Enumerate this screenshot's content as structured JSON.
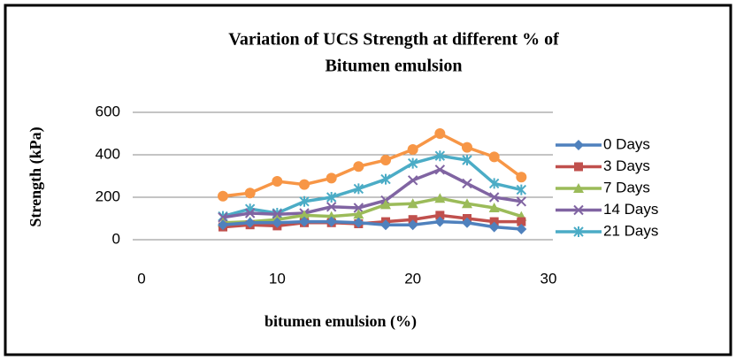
{
  "chart_data": {
    "type": "line",
    "title": [
      "Variation of UCS Strength at different  %  of",
      "Bitumen emulsion"
    ],
    "x_label": "bitumen emulsion (%)",
    "y_label": "Strength  (kPa)",
    "x": [
      6,
      8,
      10,
      12,
      14,
      16,
      18,
      20,
      22,
      24,
      26,
      28
    ],
    "xlim": [
      0,
      30
    ],
    "xticks": [
      0,
      10,
      20,
      30
    ],
    "ylim": [
      0,
      600
    ],
    "yticks": [
      0,
      200,
      400,
      600
    ],
    "grid": true,
    "legend": "right",
    "series": [
      {
        "name": "0 Days",
        "color": "#4f81bd",
        "marker": "diamond",
        "values": [
          70,
          80,
          80,
          85,
          85,
          80,
          70,
          70,
          85,
          80,
          60,
          50
        ]
      },
      {
        "name": "3 Days",
        "color": "#c0504d",
        "marker": "square",
        "values": [
          60,
          70,
          65,
          80,
          80,
          75,
          85,
          95,
          115,
          100,
          85,
          85
        ]
      },
      {
        "name": "7 Days",
        "color": "#9bbb59",
        "marker": "triangle",
        "values": [
          80,
          85,
          95,
          115,
          110,
          120,
          165,
          170,
          195,
          170,
          150,
          110
        ]
      },
      {
        "name": "14 Days",
        "color": "#8064a2",
        "marker": "cross",
        "values": [
          105,
          125,
          120,
          125,
          155,
          150,
          185,
          280,
          330,
          265,
          200,
          180
        ]
      },
      {
        "name": "21 Days",
        "color": "#4bacc6",
        "marker": "star",
        "values": [
          110,
          145,
          125,
          180,
          200,
          240,
          285,
          360,
          395,
          375,
          265,
          235
        ]
      },
      {
        "color": "#f79646",
        "marker": "circle",
        "values": [
          205,
          220,
          275,
          260,
          290,
          345,
          375,
          425,
          500,
          435,
          390,
          295
        ]
      }
    ]
  }
}
